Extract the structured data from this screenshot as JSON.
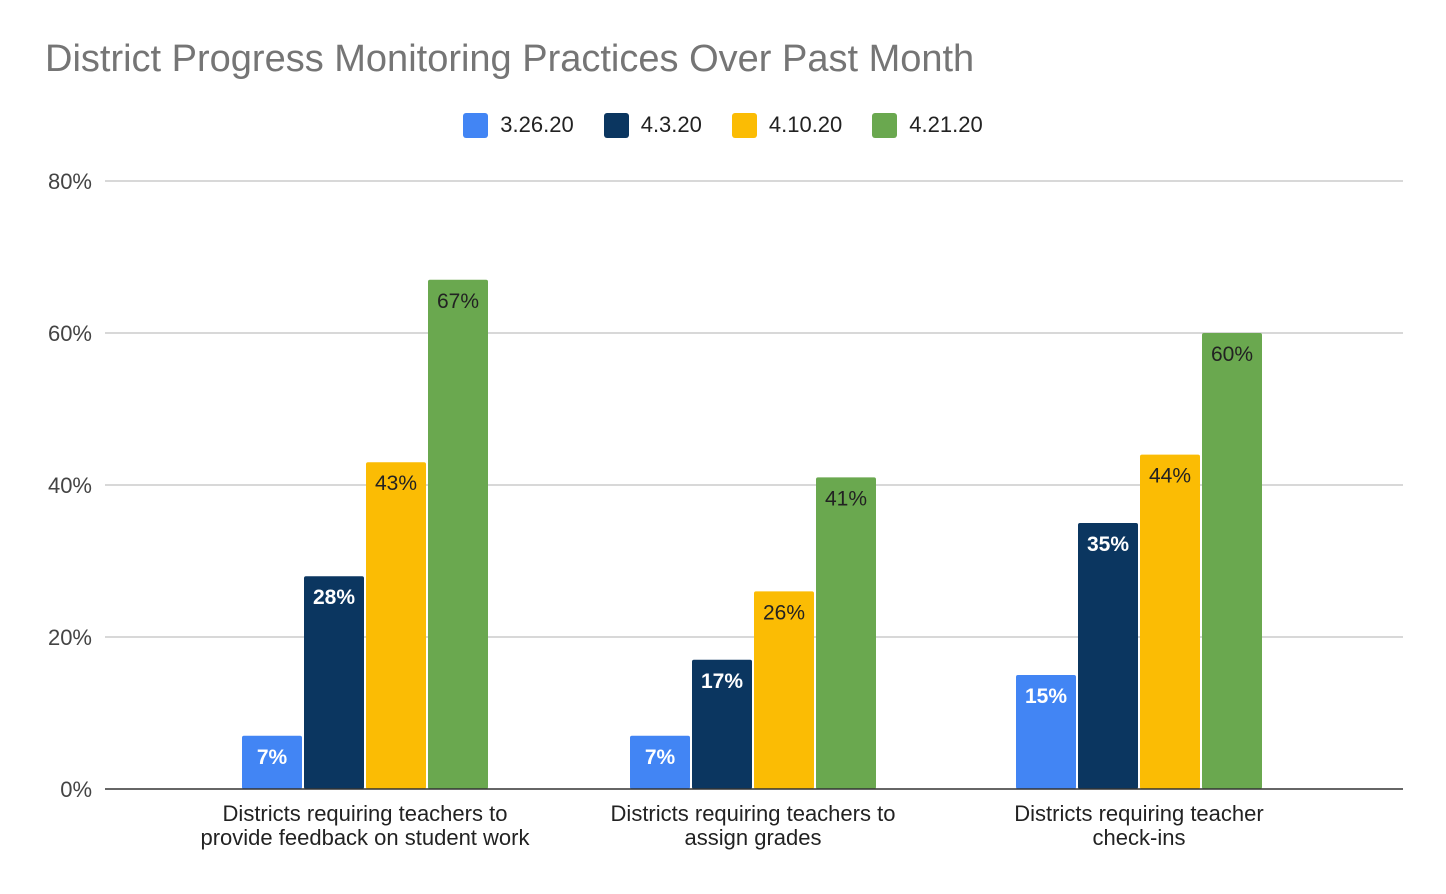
{
  "chart_data": {
    "type": "bar",
    "title": "District Progress Monitoring Practices Over Past Month",
    "xlabel": "",
    "ylabel": "",
    "categories": [
      [
        "Districts requiring teachers to",
        "provide feedback on student work"
      ],
      [
        "Districts requiring teachers to",
        "assign grades"
      ],
      [
        "Districts requiring teacher",
        "check-ins"
      ]
    ],
    "series": [
      {
        "name": "3.26.20",
        "color": "#4285f4",
        "label_color": "#ffffff",
        "values": [
          7,
          7,
          15
        ]
      },
      {
        "name": "4.3.20",
        "color": "#0b3660",
        "label_color": "#ffffff",
        "values": [
          28,
          17,
          35
        ]
      },
      {
        "name": "4.10.20",
        "color": "#fbbc04",
        "label_color": "#222222",
        "values": [
          43,
          26,
          44
        ]
      },
      {
        "name": "4.21.20",
        "color": "#6aa84f",
        "label_color": "#222222",
        "values": [
          67,
          41,
          60
        ]
      }
    ],
    "data_labels": [
      [
        "7%",
        "7%",
        "15%"
      ],
      [
        "28%",
        "17%",
        "35%"
      ],
      [
        "43%",
        "26%",
        "44%"
      ],
      [
        "67%",
        "41%",
        "60%"
      ]
    ],
    "y_ticks": [
      {
        "value": 0,
        "label": "0%"
      },
      {
        "value": 20,
        "label": "20%"
      },
      {
        "value": 40,
        "label": "40%"
      },
      {
        "value": 60,
        "label": "60%"
      },
      {
        "value": 80,
        "label": "80%"
      }
    ],
    "ylim": [
      0,
      80
    ],
    "grid": true,
    "legend_position": "top-center"
  }
}
